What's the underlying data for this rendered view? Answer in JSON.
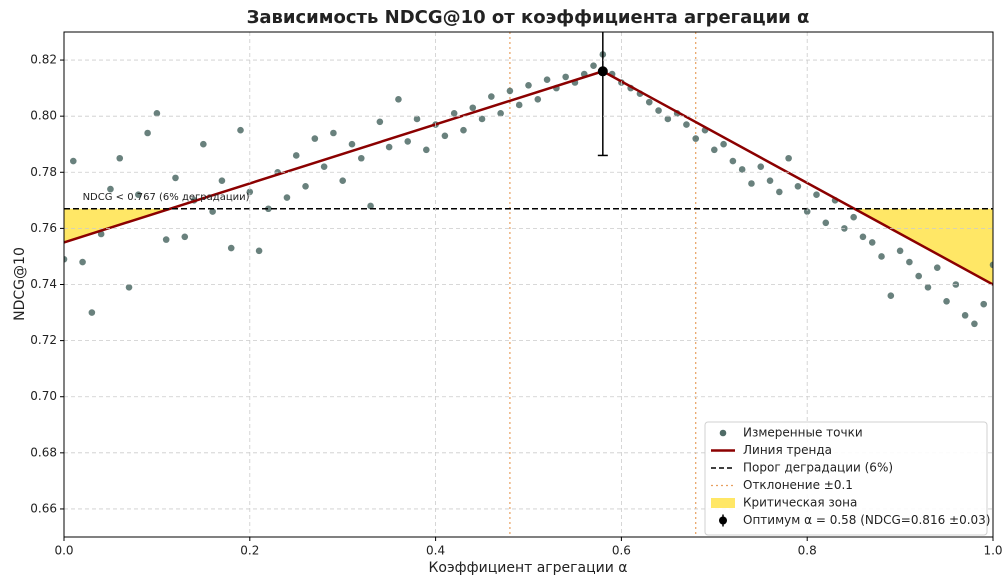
{
  "chart_data": {
    "type": "scatter",
    "title": "Зависимость NDCG@10 от коэффициента агрегации α",
    "xlabel": "Коэффициент агрегации α",
    "ylabel": "NDCG@10",
    "xlim": [
      0,
      1
    ],
    "ylim": [
      0.65,
      0.83
    ],
    "xticks": [
      {
        "value": 0,
        "label": "0.0"
      },
      0.2,
      0.4,
      0.6,
      0.8,
      {
        "value": 1,
        "label": "1.0"
      }
    ],
    "yticks": [
      0.66,
      0.68,
      {
        "value": 0.7,
        "label": "0.70"
      },
      0.72,
      0.74,
      0.76,
      0.78,
      {
        "value": 0.8,
        "label": "0.80"
      },
      0.82
    ],
    "grid": true,
    "legend": "lower right",
    "series": [
      {
        "name": "Измеренные точки",
        "color": "#4f6b66",
        "x": [
          0,
          0.01,
          0.02,
          0.03,
          0.04,
          0.05,
          0.06,
          0.07,
          0.08,
          0.09,
          0.1,
          0.11,
          0.12,
          0.13,
          0.14,
          0.15,
          0.16,
          0.17,
          0.18,
          0.19,
          0.2,
          0.21,
          0.22,
          0.23,
          0.24,
          0.25,
          0.26,
          0.27,
          0.28,
          0.29,
          0.3,
          0.31,
          0.32,
          0.33,
          0.34,
          0.35,
          0.36,
          0.37,
          0.38,
          0.39,
          0.4,
          0.41,
          0.42,
          0.43,
          0.44,
          0.45,
          0.46,
          0.47,
          0.48,
          0.49,
          0.5,
          0.51,
          0.52,
          0.53,
          0.54,
          0.55,
          0.56,
          0.57,
          0.58,
          0.59,
          0.6,
          0.61,
          0.62,
          0.63,
          0.64,
          0.65,
          0.66,
          0.67,
          0.68,
          0.69,
          0.7,
          0.71,
          0.72,
          0.73,
          0.74,
          0.75,
          0.76,
          0.77,
          0.78,
          0.79,
          0.8,
          0.81,
          0.82,
          0.83,
          0.84,
          0.85,
          0.86,
          0.87,
          0.88,
          0.89,
          0.9,
          0.91,
          0.92,
          0.93,
          0.94,
          0.95,
          0.96,
          0.97,
          0.98,
          0.99,
          1
        ],
        "values": [
          0.749,
          0.784,
          0.748,
          0.73,
          0.758,
          0.774,
          0.785,
          0.739,
          0.772,
          0.794,
          0.801,
          0.756,
          0.778,
          0.757,
          0.77,
          0.79,
          0.766,
          0.777,
          0.753,
          0.795,
          0.773,
          0.752,
          0.767,
          0.78,
          0.771,
          0.786,
          0.775,
          0.792,
          0.782,
          0.794,
          0.777,
          0.79,
          0.785,
          0.768,
          0.798,
          0.789,
          0.806,
          0.791,
          0.799,
          0.788,
          0.797,
          0.793,
          0.801,
          0.795,
          0.803,
          0.799,
          0.807,
          0.801,
          0.809,
          0.804,
          0.811,
          0.806,
          0.813,
          0.81,
          0.814,
          0.812,
          0.815,
          0.818,
          0.822,
          0.815,
          0.812,
          0.81,
          0.808,
          0.805,
          0.802,
          0.799,
          0.801,
          0.797,
          0.792,
          0.795,
          0.788,
          0.79,
          0.784,
          0.781,
          0.776,
          0.782,
          0.777,
          0.773,
          0.785,
          0.775,
          0.766,
          0.772,
          0.762,
          0.77,
          0.76,
          0.764,
          0.757,
          0.755,
          0.75,
          0.736,
          0.752,
          0.748,
          0.743,
          0.739,
          0.746,
          0.734,
          0.74,
          0.729,
          0.726,
          0.733,
          0.747
        ]
      },
      {
        "name": "Линия тренда",
        "color": "#8b0000",
        "x": [
          0,
          0.58,
          1
        ],
        "values": [
          0.755,
          0.816,
          0.74
        ]
      }
    ],
    "threshold": {
      "name": "Порог деградации (6%)",
      "value": 0.767,
      "annotation": "NDCG < 0.767 (6% деградации)"
    },
    "deviation": {
      "name": "Отклонение ±0.1",
      "color": "#e8a060",
      "x": [
        0.48,
        0.68
      ]
    },
    "critical_zone": {
      "name": "Критическая зона",
      "color": "#ffd700"
    },
    "optimum": {
      "name": "Оптимум α = 0.58 (NDCG=0.816 ±0.03)",
      "x": 0.58,
      "value": 0.816,
      "error": 0.03
    }
  }
}
